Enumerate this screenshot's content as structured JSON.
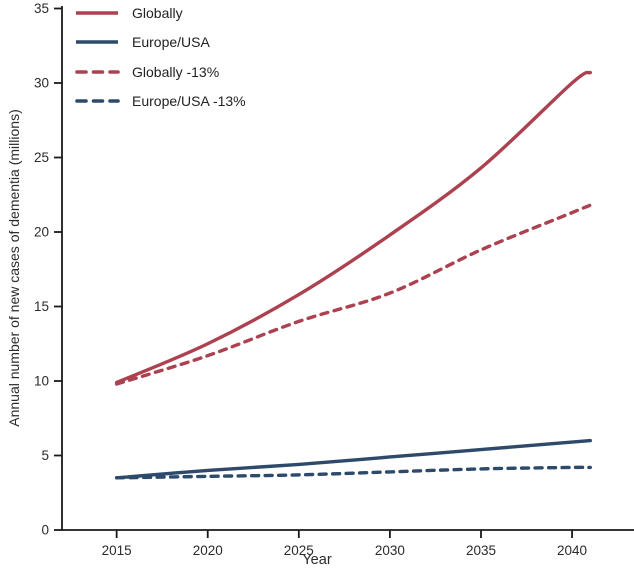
{
  "chart_data": {
    "type": "line",
    "title": "",
    "xlabel": "Year",
    "ylabel": "Annual number of new cases of dementia (millions)",
    "x_ticks": [
      2015,
      2020,
      2025,
      2030,
      2035,
      2040
    ],
    "y_ticks": [
      0,
      5,
      10,
      15,
      20,
      25,
      30,
      35
    ],
    "xlim": [
      2012,
      2043.4
    ],
    "ylim": [
      0,
      35
    ],
    "grid": false,
    "legend_position": "top-left",
    "years": [
      2015,
      2020,
      2025,
      2030,
      2035,
      2040,
      2041
    ],
    "series": [
      {
        "name": "Globally",
        "color": "#AC4150",
        "style": "solid",
        "values": [
          9.9,
          12.5,
          15.8,
          19.8,
          24.3,
          30.0,
          30.7
        ]
      },
      {
        "name": "Europe/USA",
        "color": "#2D4A6B",
        "style": "solid",
        "values": [
          3.5,
          4.0,
          4.4,
          4.9,
          5.4,
          5.9,
          6.0
        ]
      },
      {
        "name": "Globally -13%",
        "color": "#AC4150",
        "style": "dashed",
        "values": [
          9.8,
          11.7,
          14.0,
          15.9,
          18.8,
          21.3,
          21.8
        ]
      },
      {
        "name": "Europe/USA -13%",
        "color": "#2D4A6B",
        "style": "dashed",
        "values": [
          3.5,
          3.6,
          3.7,
          3.9,
          4.1,
          4.2,
          4.2
        ]
      }
    ]
  },
  "colors": {
    "red": "#AC4150",
    "blue": "#2D4A6B",
    "axis": "#1a1a1a",
    "text": "#2b2b2b"
  }
}
